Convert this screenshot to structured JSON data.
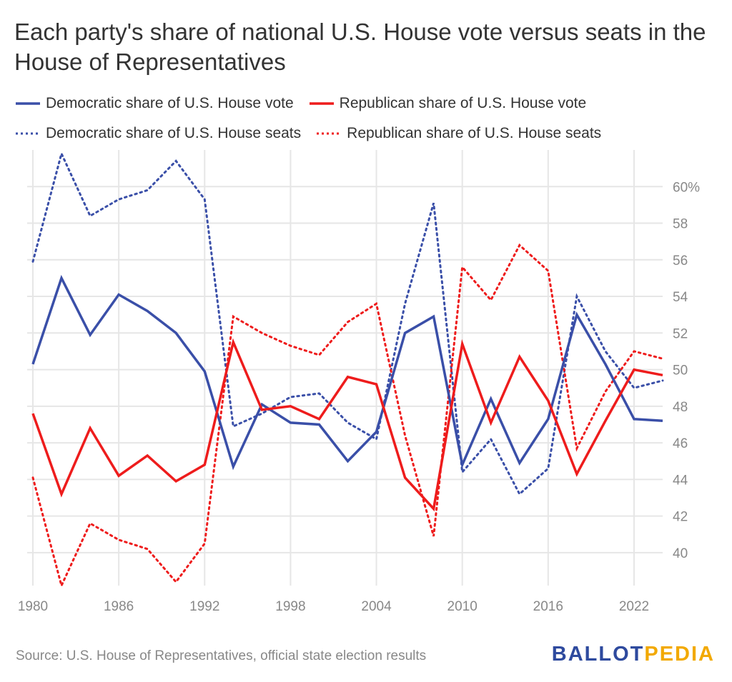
{
  "title": "Each party's share of national U.S. House vote versus seats in the House of Representatives",
  "source": "Source: U.S. House of Representatives, official state election results",
  "logo": {
    "part1": "BALLOT",
    "part2": "PEDIA",
    "color1": "#2e4a9e",
    "color2": "#f2a900"
  },
  "chart_data": {
    "type": "line",
    "x": [
      1980,
      1982,
      1984,
      1986,
      1988,
      1990,
      1992,
      1994,
      1996,
      1998,
      2000,
      2002,
      2004,
      2006,
      2008,
      2010,
      2012,
      2014,
      2016,
      2018,
      2020,
      2022,
      2024
    ],
    "series": [
      {
        "name": "Democratic share of U.S. House vote",
        "color": "#3a4fa8",
        "style": "solid",
        "values": [
          50.3,
          55.0,
          51.9,
          54.1,
          53.2,
          52.0,
          49.9,
          44.7,
          48.1,
          47.1,
          47.0,
          45.0,
          46.6,
          52.0,
          52.9,
          44.8,
          48.4,
          44.9,
          47.3,
          53.0,
          50.3,
          47.3,
          47.2
        ]
      },
      {
        "name": "Republican share of U.S. House vote",
        "color": "#ee1c1c",
        "style": "solid",
        "values": [
          47.6,
          43.2,
          46.8,
          44.2,
          45.3,
          43.9,
          44.8,
          51.5,
          47.8,
          48.0,
          47.3,
          49.6,
          49.2,
          44.1,
          42.4,
          51.4,
          47.1,
          50.7,
          48.3,
          44.3,
          47.2,
          50.0,
          49.7
        ]
      },
      {
        "name": "Democratic share of U.S. House seats",
        "color": "#3a4fa8",
        "style": "dotted",
        "values": [
          55.9,
          61.8,
          58.4,
          59.3,
          59.8,
          61.4,
          59.3,
          46.9,
          47.6,
          48.5,
          48.7,
          47.1,
          46.2,
          53.6,
          59.1,
          44.4,
          46.2,
          43.2,
          44.6,
          54.0,
          51.0,
          49.0,
          49.4
        ]
      },
      {
        "name": "Republican share of U.S. House seats",
        "color": "#ee1c1c",
        "style": "dotted",
        "values": [
          44.1,
          38.2,
          41.6,
          40.7,
          40.2,
          38.4,
          40.5,
          52.9,
          52.0,
          51.3,
          50.8,
          52.6,
          53.6,
          46.4,
          40.9,
          55.6,
          53.8,
          56.8,
          55.4,
          45.7,
          48.8,
          51.0,
          50.6
        ]
      }
    ],
    "x_ticks": [
      1980,
      1986,
      1992,
      1998,
      2004,
      2010,
      2016,
      2022
    ],
    "y_ticks": [
      40,
      42,
      44,
      46,
      48,
      50,
      52,
      54,
      56,
      58,
      60
    ],
    "y_tick_labels": [
      "40",
      "42",
      "44",
      "46",
      "48",
      "50",
      "52",
      "54",
      "56",
      "58",
      "60%"
    ],
    "ylim": [
      38.2,
      62
    ],
    "grid": true,
    "y_axis_side": "right",
    "legend_placement": "top"
  }
}
